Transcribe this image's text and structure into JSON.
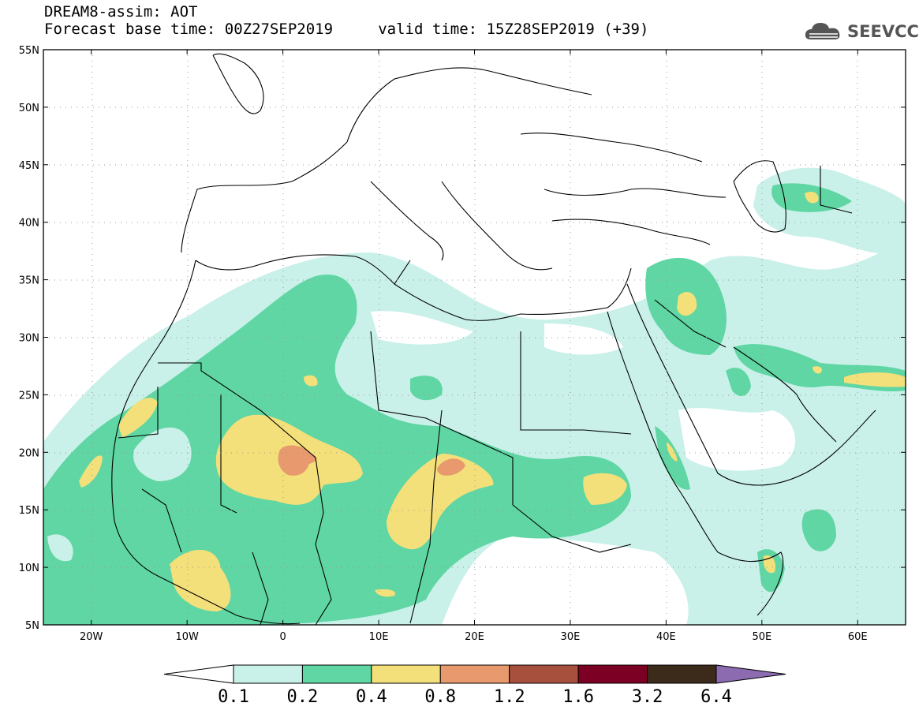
{
  "title": {
    "line1": "DREAM8-assim: AOT",
    "line2": "Forecast base time: 00Z27SEP2019     valid time: 15Z28SEP2019 (+39)"
  },
  "logo": {
    "text": "SEEVCCC",
    "icon": "cloud-icon"
  },
  "map_data": {
    "lon_range": [
      -25,
      65
    ],
    "lat_range": [
      5,
      55
    ],
    "x_ticks": [
      "20W",
      "10W",
      "0",
      "10E",
      "20E",
      "30E",
      "40E",
      "50E",
      "60E"
    ],
    "y_ticks": [
      "5N",
      "10N",
      "15N",
      "20N",
      "25N",
      "30N",
      "35N",
      "40N",
      "45N",
      "50N",
      "55N"
    ],
    "grid": "dotted"
  },
  "colorbar": {
    "labels": [
      "0.1",
      "0.2",
      "0.4",
      "0.8",
      "1.2",
      "1.6",
      "3.2",
      "6.4"
    ],
    "colors": [
      "#c9f1e9",
      "#5fd6a3",
      "#f4e07a",
      "#e89a6e",
      "#a8503e",
      "#7b0024",
      "#3c2a1a"
    ],
    "under_color": "#ffffff",
    "over_color": "#8c6bb1"
  },
  "colors": {
    "level1": "#c9f1e9",
    "level2": "#5fd6a3",
    "level3": "#f4e07a",
    "level4": "#e89a6e"
  }
}
